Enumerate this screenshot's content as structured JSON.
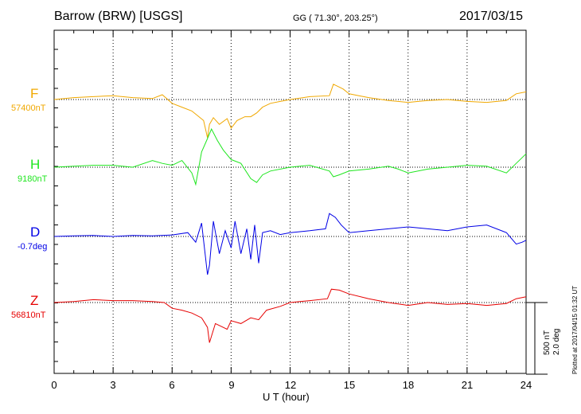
{
  "header": {
    "station": "Barrow (BRW)  [USGS]",
    "coords": "GG ( 71.30°, 203.25°)",
    "date": "2017/03/15"
  },
  "scale": {
    "nt": "500 nT",
    "deg": "2.0 deg"
  },
  "plotted_note": "Plotted at 2017/04/15 01:32 UT",
  "colors": {
    "F": "#f0a800",
    "H": "#1ee61e",
    "D": "#0000e6",
    "Z": "#e60000"
  },
  "chart_data": {
    "type": "line",
    "xlabel": "U T (hour)",
    "xlim": [
      0,
      24
    ],
    "xticks": [
      "0",
      "3",
      "6",
      "9",
      "12",
      "15",
      "18",
      "21",
      "24"
    ],
    "scale_nT": 500,
    "scale_deg": 2.0,
    "series": [
      {
        "name": "F",
        "baseline": "57400nT",
        "color": "#f0a800",
        "x": [
          0,
          1,
          2,
          3,
          4,
          5,
          5.5,
          6,
          6.5,
          7,
          7.3,
          7.6,
          7.8,
          7.9,
          8.1,
          8.4,
          8.8,
          9.0,
          9.3,
          9.7,
          10.0,
          10.3,
          10.6,
          11.0,
          11.5,
          12.0,
          13.0,
          14.0,
          14.2,
          14.4,
          14.7,
          15.0,
          15.5,
          16,
          17,
          18,
          19,
          20,
          21,
          22,
          23,
          23.5,
          24
        ],
        "y": [
          0,
          10,
          15,
          20,
          10,
          5,
          25,
          -20,
          -40,
          -60,
          -85,
          -110,
          -200,
          -130,
          -95,
          -130,
          -100,
          -150,
          -110,
          -90,
          -90,
          -70,
          -40,
          -20,
          -10,
          0,
          15,
          20,
          80,
          70,
          55,
          30,
          20,
          10,
          -5,
          -15,
          -5,
          0,
          -10,
          -15,
          -5,
          30,
          40
        ]
      },
      {
        "name": "H",
        "baseline": "9180nT",
        "color": "#1ee61e",
        "x": [
          0,
          1,
          2,
          3,
          4,
          5,
          5.5,
          6,
          6.5,
          7,
          7.2,
          7.5,
          7.8,
          8.0,
          8.3,
          8.6,
          9.0,
          9.5,
          10.0,
          10.3,
          10.6,
          11.0,
          12.0,
          13.0,
          14.0,
          14.2,
          14.5,
          15.0,
          16,
          17,
          17.5,
          18,
          19,
          20,
          21,
          22,
          23,
          23.5,
          24
        ],
        "y": [
          0,
          5,
          10,
          10,
          0,
          35,
          20,
          10,
          35,
          -30,
          -90,
          80,
          150,
          200,
          140,
          90,
          40,
          20,
          -60,
          -80,
          -40,
          -20,
          0,
          10,
          -20,
          -50,
          -40,
          -20,
          -10,
          5,
          -10,
          -30,
          -10,
          0,
          10,
          5,
          -30,
          20,
          70
        ]
      },
      {
        "name": "D",
        "baseline": "-0.7deg",
        "color": "#0000e6",
        "x": [
          0,
          1,
          2,
          3,
          4,
          5,
          6,
          6.8,
          7.2,
          7.5,
          7.8,
          7.9,
          8.1,
          8.4,
          8.7,
          9.0,
          9.2,
          9.5,
          9.8,
          10.0,
          10.2,
          10.4,
          10.6,
          11.0,
          11.5,
          12.0,
          13.0,
          13.8,
          14.0,
          14.3,
          14.6,
          15.0,
          16,
          17,
          18,
          19,
          20,
          21,
          22,
          23,
          23.5,
          23.8,
          24
        ],
        "y": [
          0,
          3,
          5,
          0,
          5,
          3,
          8,
          20,
          -30,
          70,
          -200,
          -150,
          80,
          -90,
          30,
          -60,
          80,
          -90,
          40,
          -120,
          60,
          -140,
          20,
          30,
          10,
          20,
          30,
          40,
          120,
          100,
          60,
          20,
          30,
          40,
          50,
          40,
          30,
          50,
          60,
          20,
          -40,
          -30,
          -20
        ]
      },
      {
        "name": "Z",
        "baseline": "56810nT",
        "color": "#e60000",
        "x": [
          0,
          1,
          2,
          3,
          4,
          5,
          5.6,
          6,
          6.5,
          7,
          7.5,
          7.8,
          7.9,
          8.2,
          8.6,
          8.8,
          9.0,
          9.5,
          10.0,
          10.4,
          10.8,
          11.5,
          12.0,
          13.0,
          13.9,
          14.1,
          14.5,
          15.0,
          16,
          17,
          18,
          19,
          20,
          21,
          22,
          23,
          23.5,
          24
        ],
        "y": [
          0,
          5,
          15,
          10,
          10,
          5,
          0,
          -30,
          -40,
          -55,
          -80,
          -130,
          -210,
          -110,
          -130,
          -140,
          -95,
          -110,
          -80,
          -90,
          -40,
          -20,
          0,
          10,
          20,
          70,
          65,
          45,
          20,
          0,
          -15,
          0,
          -10,
          -5,
          -15,
          -5,
          20,
          30
        ]
      }
    ]
  }
}
